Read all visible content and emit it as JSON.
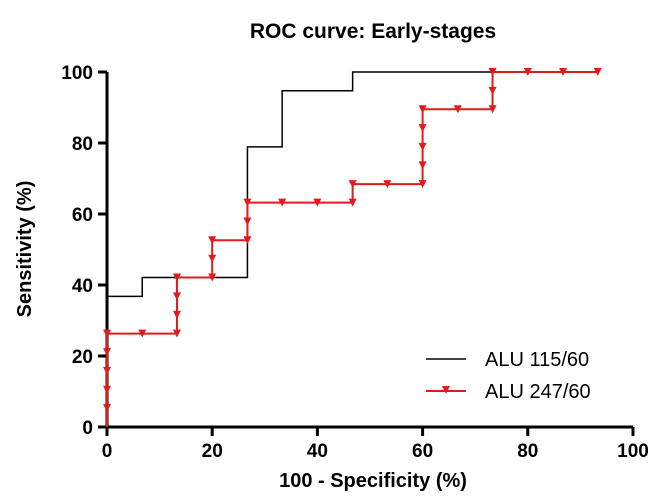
{
  "chart_data": {
    "type": "line",
    "title": "ROC curve: Early-stages",
    "xlabel": "100 - Specificity (%)",
    "ylabel": "Sensitivity (%)",
    "xlim": [
      0,
      100
    ],
    "ylim": [
      0,
      100
    ],
    "xticks": [
      0,
      20,
      40,
      60,
      80,
      100
    ],
    "yticks": [
      0,
      20,
      40,
      60,
      80,
      100
    ],
    "grid": false,
    "legend_position": "bottom-right",
    "series": [
      {
        "name": "ALU 115/60",
        "color": "#000000",
        "marker": "none",
        "points": [
          [
            0,
            0
          ],
          [
            0,
            36.8
          ],
          [
            6.7,
            36.8
          ],
          [
            6.7,
            42.1
          ],
          [
            26.7,
            42.1
          ],
          [
            26.7,
            78.9
          ],
          [
            33.3,
            78.9
          ],
          [
            33.3,
            94.7
          ],
          [
            46.7,
            94.7
          ],
          [
            46.7,
            100
          ],
          [
            93.3,
            100
          ]
        ]
      },
      {
        "name": "ALU 247/60",
        "color": "#e31a1c",
        "marker": "triangle-down",
        "points": [
          [
            0,
            0
          ],
          [
            0,
            5.3
          ],
          [
            0,
            10.5
          ],
          [
            0,
            15.8
          ],
          [
            0,
            21.1
          ],
          [
            0,
            26.3
          ],
          [
            6.7,
            26.3
          ],
          [
            13.3,
            26.3
          ],
          [
            13.3,
            31.6
          ],
          [
            13.3,
            36.8
          ],
          [
            13.3,
            42.1
          ],
          [
            20,
            42.1
          ],
          [
            20,
            47.4
          ],
          [
            20,
            52.6
          ],
          [
            26.7,
            52.6
          ],
          [
            26.7,
            57.9
          ],
          [
            26.7,
            63.2
          ],
          [
            33.3,
            63.2
          ],
          [
            40,
            63.2
          ],
          [
            46.7,
            63.2
          ],
          [
            46.7,
            68.4
          ],
          [
            53.3,
            68.4
          ],
          [
            60,
            68.4
          ],
          [
            60,
            73.7
          ],
          [
            60,
            78.9
          ],
          [
            60,
            84.2
          ],
          [
            60,
            89.5
          ],
          [
            66.7,
            89.5
          ],
          [
            73.3,
            89.5
          ],
          [
            73.3,
            94.7
          ],
          [
            73.3,
            100
          ],
          [
            80,
            100
          ],
          [
            86.7,
            100
          ],
          [
            93.3,
            100
          ]
        ]
      }
    ]
  }
}
